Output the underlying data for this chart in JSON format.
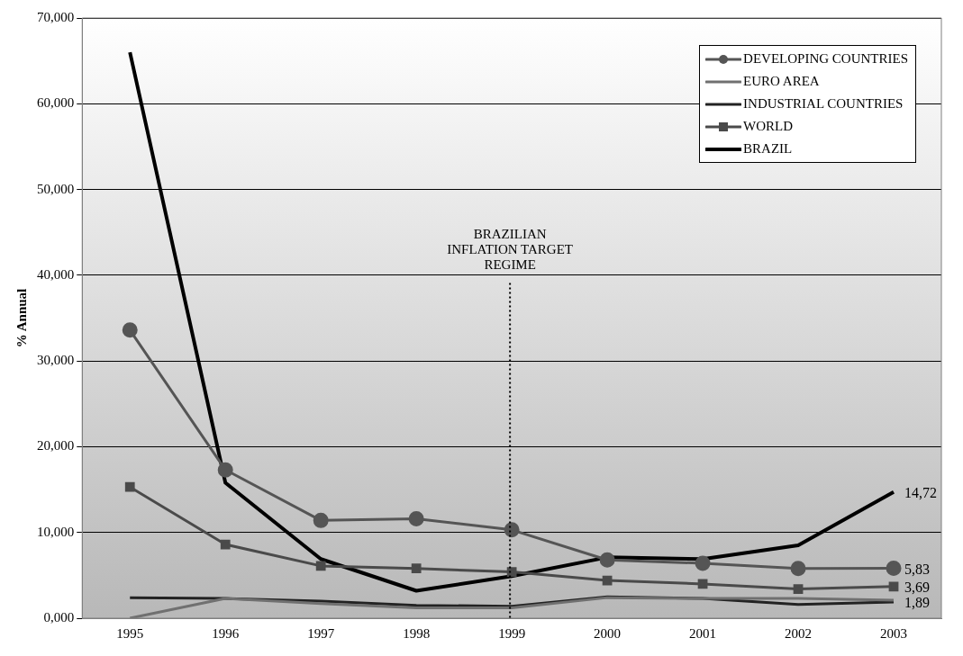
{
  "chart_data": {
    "type": "line",
    "ylabel": "% Annual",
    "categories": [
      "1995",
      "1996",
      "1997",
      "1998",
      "1999",
      "2000",
      "2001",
      "2002",
      "2003"
    ],
    "series": [
      {
        "name": "DEVELOPING COUNTRIES",
        "color": "#555555",
        "marker": "circle",
        "values": [
          33.6,
          17.3,
          11.4,
          11.6,
          10.3,
          6.8,
          6.4,
          5.8,
          5.83
        ],
        "value_labels": [
          null,
          null,
          null,
          null,
          null,
          null,
          null,
          null,
          "5,83"
        ]
      },
      {
        "name": "EURO AREA",
        "color": "#707070",
        "marker": "none",
        "values": [
          0,
          2.3,
          1.7,
          1.2,
          1.2,
          2.4,
          2.3,
          2.3,
          2.1
        ]
      },
      {
        "name": "INDUSTRIAL COUNTRIES",
        "color": "#222222",
        "marker": "none",
        "values": [
          2.4,
          2.3,
          2.0,
          1.5,
          1.4,
          2.5,
          2.3,
          1.6,
          1.89
        ],
        "value_labels": [
          null,
          null,
          null,
          null,
          null,
          null,
          null,
          null,
          "1,89"
        ]
      },
      {
        "name": "WORLD",
        "color": "#4a4a4a",
        "marker": "square",
        "values": [
          15.3,
          8.6,
          6.1,
          5.8,
          5.4,
          4.4,
          4.0,
          3.4,
          3.69
        ],
        "value_labels": [
          null,
          null,
          null,
          null,
          null,
          null,
          null,
          null,
          "3,69"
        ]
      },
      {
        "name": "BRAZIL",
        "color": "#000000",
        "marker": "none",
        "values": [
          66.0,
          15.8,
          6.9,
          3.2,
          4.9,
          7.1,
          6.9,
          8.5,
          14.72
        ],
        "value_labels": [
          null,
          null,
          null,
          null,
          null,
          null,
          null,
          null,
          "14,72"
        ]
      }
    ],
    "ylim": [
      0,
      70
    ],
    "yticks": [
      {
        "value": 0,
        "label": "0,000"
      },
      {
        "value": 10,
        "label": "10,000"
      },
      {
        "value": 20,
        "label": "20,000"
      },
      {
        "value": 30,
        "label": "30,000"
      },
      {
        "value": 40,
        "label": "40,000"
      },
      {
        "value": 50,
        "label": "50,000"
      },
      {
        "value": 60,
        "label": "60,000"
      },
      {
        "value": 70,
        "label": "70,000"
      }
    ],
    "grid": "y",
    "legend": "top right",
    "line_style": "solid",
    "ref_lines": [
      {
        "axis": "x",
        "value": "1999",
        "label": "BRAZILIAN INFLATION TARGET REGIME",
        "color": "#000000",
        "line_style": "dotted"
      }
    ]
  }
}
